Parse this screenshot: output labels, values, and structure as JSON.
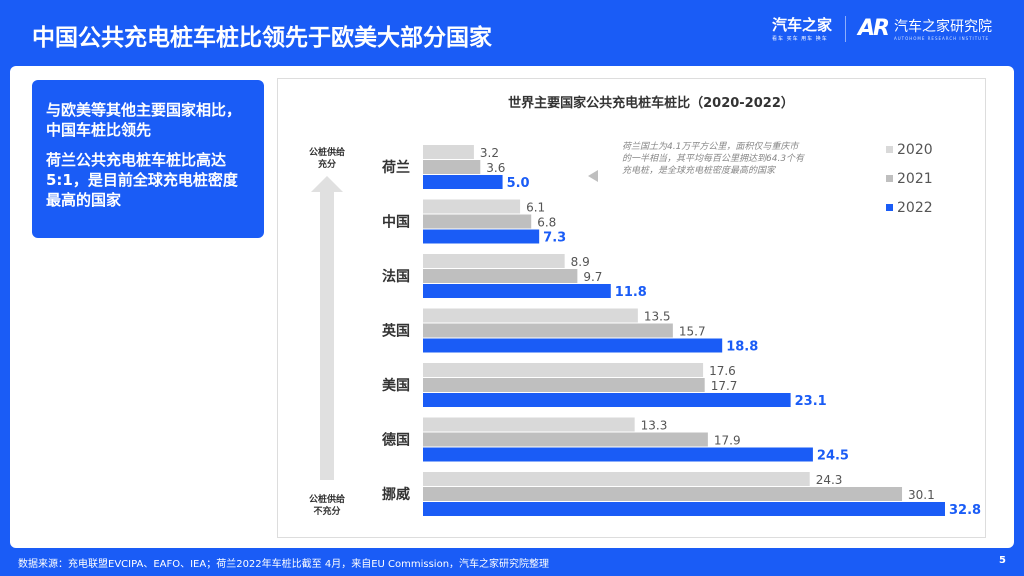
{
  "header": {
    "title": "中国公共充电桩车桩比领先于欧美大部分国家",
    "logo_main": "汽车之家",
    "logo_main_sub": "看车 买车 用车 换车",
    "logo_research": "汽车之家研究院",
    "logo_research_sub": "AUTOHOME RESEARCH INSTITUTE",
    "logo_mark": "AR"
  },
  "summary": {
    "point1": "与欧美等其他主要国家相比，中国车桩比领先",
    "point2": "荷兰公共充电桩车桩比高达5:1，是目前全球充电桩密度最高的国家"
  },
  "footer": {
    "source": "数据来源：充电联盟EVCIPA、EAFO、IEA；荷兰2022年车桩比截至 4月，来自EU Commission，汽车之家研究院整理",
    "page": "5"
  },
  "colors": {
    "brand": "#1a5cf6",
    "s2020": "#d9d9d9",
    "s2021": "#bfbfbf",
    "s2022": "#1a5cf6"
  },
  "chart_data": {
    "type": "bar",
    "orientation": "horizontal",
    "title": "世界主要国家公共充电桩车桩比（2020-2022）",
    "categories": [
      "荷兰",
      "中国",
      "法国",
      "英国",
      "美国",
      "德国",
      "挪威"
    ],
    "series": [
      {
        "name": "2020",
        "values": [
          3.2,
          6.1,
          8.9,
          13.5,
          17.6,
          13.3,
          24.3
        ]
      },
      {
        "name": "2021",
        "values": [
          3.6,
          6.8,
          9.7,
          15.7,
          17.7,
          17.9,
          30.1
        ]
      },
      {
        "name": "2022",
        "values": [
          5.0,
          7.3,
          11.8,
          18.8,
          23.1,
          24.5,
          32.8
        ]
      }
    ],
    "xlim": [
      0,
      32.8
    ],
    "legend": "top-right",
    "axis_top_label": "公桩供给充分",
    "axis_bottom_label": "公桩供给不充分",
    "annotation": "荷兰国土为4.1万平方公里，面积仅与重庆市的一半相当，其平均每百公里拥达到64.3个有充电桩，是全球充电桩密度最高的国家"
  }
}
